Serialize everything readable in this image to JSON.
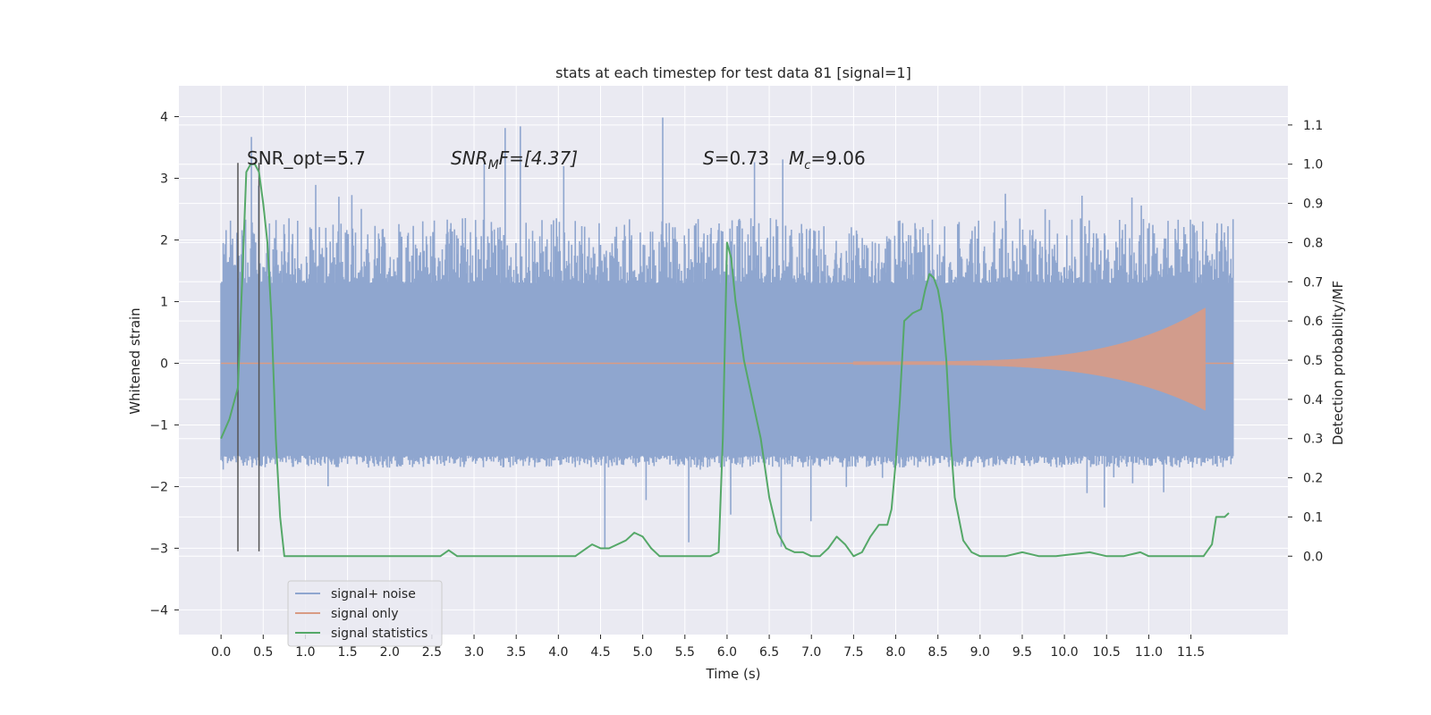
{
  "chart_data": {
    "type": "line",
    "title": "stats at each timestep for test data 81 [signal=1]",
    "xlabel": "Time (s)",
    "ylabel": "Whitened strain",
    "ylabel_right": "Detection probability/MF",
    "xlim": [
      -0.5,
      12.65
    ],
    "ylim": [
      -4.4,
      4.5
    ],
    "ylim_right": [
      -0.2,
      1.2
    ],
    "x_ticks": [
      "0.0",
      "0.5",
      "1.0",
      "1.5",
      "2.0",
      "2.5",
      "3.0",
      "3.5",
      "4.0",
      "4.5",
      "5.0",
      "5.5",
      "6.0",
      "6.5",
      "7.0",
      "7.5",
      "8.0",
      "8.5",
      "9.0",
      "9.5",
      "10.0",
      "10.5",
      "11.0",
      "11.5"
    ],
    "y_ticks": [
      "−4",
      "−3",
      "−2",
      "−1",
      "0",
      "1",
      "2",
      "3",
      "4"
    ],
    "y_ticks_right": [
      "0.0",
      "0.1",
      "0.2",
      "0.3",
      "0.4",
      "0.5",
      "0.6",
      "0.7",
      "0.8",
      "0.9",
      "1.0",
      "1.1"
    ],
    "grid": true,
    "legend": {
      "placement": "lower-left",
      "entries": [
        "signal+ noise",
        "signal only",
        "signal statistics"
      ]
    },
    "annotations": {
      "snr_opt": "SNR_opt=5.7",
      "snr_mf_main": "SNR",
      "snr_mf_sub": "M",
      "snr_mf_rest": "F=[4.37]",
      "s_label": "S",
      "s_value": "=0.73",
      "mc_label": "M",
      "mc_sub": "c",
      "mc_value": "=9.06"
    },
    "colors": {
      "noise": "#8fa6cf",
      "signal": "#d99b84",
      "stats": "#55a868",
      "vline": "#555555",
      "background": "#eaeaf2"
    },
    "series": [
      {
        "name": "signal+ noise",
        "axis": "left",
        "duration": 12.0,
        "envelope": {
          "bulk_hi": 1.3,
          "bulk_lo": -1.5,
          "typical_peak": 2.4,
          "max": 4.1,
          "min": -3.9
        }
      },
      {
        "name": "signal only",
        "axis": "left",
        "chirp": {
          "start": 7.5,
          "end": 11.67,
          "max_amp": 0.9
        }
      },
      {
        "name": "signal statistics",
        "axis": "right",
        "x": [
          0.0,
          0.1,
          0.2,
          0.25,
          0.3,
          0.35,
          0.4,
          0.45,
          0.5,
          0.55,
          0.6,
          0.65,
          0.7,
          0.75,
          0.8,
          1.0,
          2.0,
          2.6,
          2.7,
          2.8,
          3.5,
          4.2,
          4.3,
          4.4,
          4.5,
          4.6,
          4.8,
          4.9,
          5.0,
          5.1,
          5.2,
          5.5,
          5.8,
          5.9,
          5.95,
          6.0,
          6.05,
          6.1,
          6.15,
          6.2,
          6.3,
          6.4,
          6.5,
          6.6,
          6.7,
          6.8,
          6.9,
          7.0,
          7.1,
          7.2,
          7.3,
          7.4,
          7.5,
          7.6,
          7.7,
          7.8,
          7.9,
          7.95,
          8.0,
          8.05,
          8.1,
          8.15,
          8.2,
          8.3,
          8.35,
          8.4,
          8.45,
          8.5,
          8.55,
          8.6,
          8.65,
          8.7,
          8.8,
          8.9,
          9.0,
          9.1,
          9.3,
          9.5,
          9.7,
          9.9,
          10.3,
          10.5,
          10.7,
          10.9,
          11.0,
          11.2,
          11.5,
          11.65,
          11.75,
          11.8,
          11.85,
          11.9,
          11.95
        ],
        "values": [
          0.3,
          0.35,
          0.43,
          0.7,
          0.98,
          1.0,
          1.0,
          0.98,
          0.9,
          0.8,
          0.6,
          0.3,
          0.1,
          0.0,
          0.0,
          0.0,
          0.0,
          0.0,
          0.015,
          0.0,
          0.0,
          0.0,
          0.015,
          0.03,
          0.02,
          0.02,
          0.04,
          0.06,
          0.05,
          0.02,
          0.0,
          0.0,
          0.0,
          0.01,
          0.3,
          0.8,
          0.76,
          0.65,
          0.58,
          0.5,
          0.4,
          0.3,
          0.15,
          0.06,
          0.02,
          0.01,
          0.01,
          0.0,
          0.0,
          0.02,
          0.05,
          0.03,
          0.0,
          0.01,
          0.05,
          0.08,
          0.08,
          0.12,
          0.24,
          0.4,
          0.6,
          0.61,
          0.62,
          0.63,
          0.68,
          0.72,
          0.71,
          0.68,
          0.62,
          0.5,
          0.3,
          0.15,
          0.04,
          0.01,
          0.0,
          0.0,
          0.0,
          0.01,
          0.0,
          0.0,
          0.01,
          0.0,
          0.0,
          0.01,
          0.0,
          0.0,
          0.0,
          0.0,
          0.03,
          0.1,
          0.1,
          0.1,
          0.11
        ]
      }
    ],
    "vlines": [
      {
        "x": 0.2,
        "y_top": 3.25,
        "y_bottom": -3.05
      },
      {
        "x": 0.45,
        "y_top": 3.25,
        "y_bottom": -3.05
      }
    ]
  }
}
